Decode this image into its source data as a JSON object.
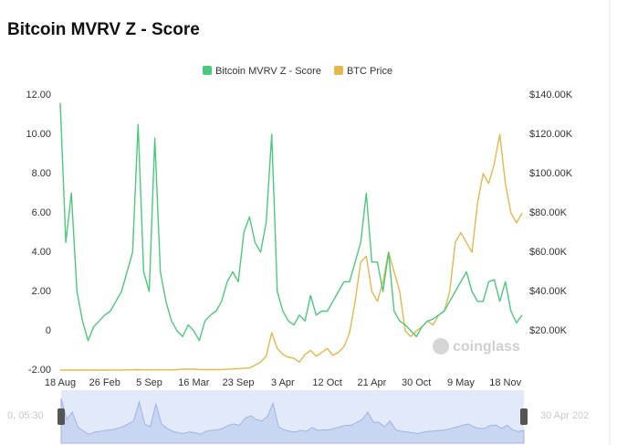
{
  "chart_data": {
    "type": "line",
    "title": "Bitcoin MVRV Z - Score",
    "watermark": "coinglass",
    "navigator_labels": [
      "0, 05:30",
      "30 Apr 202"
    ],
    "categories": [
      "18 Aug",
      null,
      null,
      null,
      null,
      null,
      null,
      null,
      "26 Feb",
      null,
      null,
      null,
      null,
      null,
      null,
      null,
      "5 Sep",
      null,
      null,
      null,
      null,
      null,
      null,
      null,
      "16 Mar",
      null,
      null,
      null,
      null,
      null,
      null,
      null,
      "23 Sep",
      null,
      null,
      null,
      null,
      null,
      null,
      null,
      "3 Apr",
      null,
      null,
      null,
      null,
      null,
      null,
      null,
      "12 Oct",
      null,
      null,
      null,
      null,
      null,
      null,
      null,
      "21 Apr",
      null,
      null,
      null,
      null,
      null,
      null,
      null,
      "30 Oct",
      null,
      null,
      null,
      null,
      null,
      null,
      null,
      "9 May",
      null,
      null,
      null,
      null,
      null,
      null,
      null,
      "18 Nov",
      null,
      null,
      null
    ],
    "series": [
      {
        "name": "Bitcoin MVRV Z - Score",
        "color": "#4cc97d",
        "axis": "y",
        "values": [
          11.6,
          4.5,
          7,
          2,
          0.5,
          -0.5,
          0.2,
          0.5,
          0.8,
          1,
          1.5,
          2,
          3,
          4,
          10.5,
          3,
          2,
          9.8,
          3,
          1.5,
          0.5,
          0,
          -0.3,
          0.3,
          0,
          -0.5,
          0.5,
          0.8,
          1,
          1.5,
          2.5,
          3,
          2.5,
          5,
          5.8,
          4.5,
          4,
          5.5,
          10,
          2,
          1,
          0.5,
          0.3,
          0.8,
          0.5,
          1.8,
          0.8,
          1,
          1,
          1.5,
          2,
          2.5,
          2.5,
          3.5,
          4.5,
          7,
          3.5,
          3.5,
          2,
          4,
          1,
          0.5,
          0.3,
          0,
          -0.3,
          0.2,
          0.5,
          0.6,
          0.8,
          1,
          1.5,
          2,
          2.5,
          3,
          2,
          1.5,
          1.5,
          2.5,
          2.6,
          1.5,
          2.5,
          1,
          0.4,
          0.8
        ]
      },
      {
        "name": "BTC Price",
        "color": "#e3b84c",
        "axis": "y2",
        "values": [
          10,
          10,
          15,
          12,
          8,
          6,
          7,
          10,
          20,
          30,
          40,
          60,
          80,
          120,
          220,
          110,
          100,
          180,
          120,
          110,
          100,
          250,
          400,
          450,
          500,
          300,
          250,
          220,
          230,
          300,
          420,
          600,
          700,
          900,
          1100,
          2500,
          4000,
          7000,
          19000,
          11000,
          8000,
          6500,
          6000,
          4000,
          8000,
          10000,
          7000,
          9000,
          11000,
          7500,
          9000,
          12000,
          19000,
          35000,
          55000,
          58000,
          40000,
          35000,
          45000,
          60000,
          50000,
          40000,
          20000,
          17000,
          20000,
          22000,
          25000,
          23000,
          28000,
          30000,
          40000,
          65000,
          70000,
          65000,
          60000,
          85000,
          100000,
          95000,
          105000,
          120000,
          95000,
          80000,
          75000,
          80000
        ]
      }
    ],
    "ylim": [
      -2,
      12
    ],
    "yticks": [
      {
        "value": -2,
        "label": "-2.00"
      },
      0,
      {
        "value": 2,
        "label": "2.00"
      },
      {
        "value": 4,
        "label": "4.00"
      },
      {
        "value": 6,
        "label": "6.00"
      },
      {
        "value": 8,
        "label": "8.00"
      },
      {
        "value": 10,
        "label": "10.00"
      },
      {
        "value": 12,
        "label": "12.00"
      }
    ],
    "y2lim": [
      0,
      140000
    ],
    "y2ticks": [
      {
        "value": 20000,
        "label": "$20.00K"
      },
      {
        "value": 40000,
        "label": "$40.00K"
      },
      {
        "value": 60000,
        "label": "$60.00K"
      },
      {
        "value": 80000,
        "label": "$80.00K"
      },
      {
        "value": 100000,
        "label": "$100.00K"
      },
      {
        "value": 120000,
        "label": "$120.00K"
      },
      {
        "value": 140000,
        "label": "$140.00K"
      }
    ],
    "grid": false,
    "legend": "top"
  }
}
